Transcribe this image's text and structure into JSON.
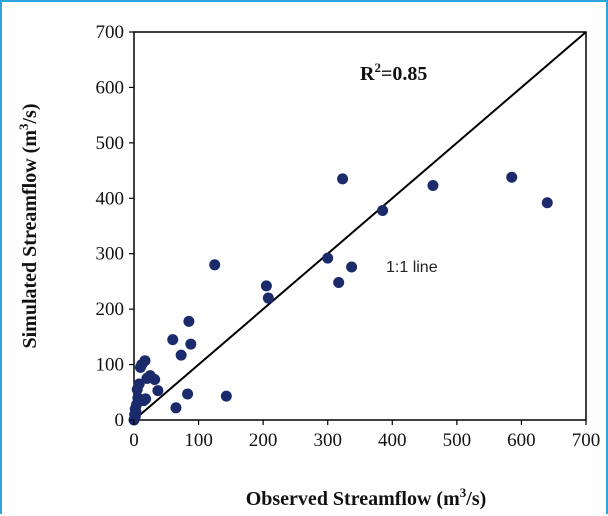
{
  "chart_data": {
    "type": "scatter",
    "title": "",
    "xlabel": {
      "main": "Observed Streamflow (m",
      "sup": "3",
      "tail": "/s)"
    },
    "ylabel": {
      "main": "Simulated Streamflow (m",
      "sup": "3",
      "tail": "/s)"
    },
    "xlim": [
      0,
      700
    ],
    "ylim": [
      0,
      700
    ],
    "x_ticks": [
      0,
      100,
      200,
      300,
      400,
      500,
      600,
      700
    ],
    "y_ticks": [
      0,
      100,
      200,
      300,
      400,
      500,
      600,
      700
    ],
    "stat_label": {
      "main": "R",
      "sup": "2",
      "tail": "=0.85"
    },
    "reference_line": {
      "label": "1:1 line",
      "from": [
        0,
        0
      ],
      "to": [
        700,
        700
      ]
    },
    "grid": false,
    "marker_color": "#1b2a6b",
    "line_color": "#000000",
    "points": [
      {
        "x": 0,
        "y": 0
      },
      {
        "x": 1,
        "y": 3
      },
      {
        "x": 2,
        "y": 6
      },
      {
        "x": 1,
        "y": 10
      },
      {
        "x": 3,
        "y": 15
      },
      {
        "x": 2,
        "y": 20
      },
      {
        "x": 4,
        "y": 28
      },
      {
        "x": 6,
        "y": 40
      },
      {
        "x": 5,
        "y": 55
      },
      {
        "x": 8,
        "y": 65
      },
      {
        "x": 10,
        "y": 95
      },
      {
        "x": 12,
        "y": 100
      },
      {
        "x": 17,
        "y": 107
      },
      {
        "x": 15,
        "y": 35
      },
      {
        "x": 18,
        "y": 38
      },
      {
        "x": 20,
        "y": 75
      },
      {
        "x": 25,
        "y": 80
      },
      {
        "x": 32,
        "y": 73
      },
      {
        "x": 37,
        "y": 53
      },
      {
        "x": 60,
        "y": 145
      },
      {
        "x": 65,
        "y": 22
      },
      {
        "x": 73,
        "y": 117
      },
      {
        "x": 83,
        "y": 47
      },
      {
        "x": 85,
        "y": 178
      },
      {
        "x": 88,
        "y": 137
      },
      {
        "x": 125,
        "y": 280
      },
      {
        "x": 143,
        "y": 43
      },
      {
        "x": 205,
        "y": 242
      },
      {
        "x": 208,
        "y": 220
      },
      {
        "x": 300,
        "y": 292
      },
      {
        "x": 317,
        "y": 248
      },
      {
        "x": 323,
        "y": 435
      },
      {
        "x": 337,
        "y": 276
      },
      {
        "x": 385,
        "y": 378
      },
      {
        "x": 463,
        "y": 423
      },
      {
        "x": 585,
        "y": 438
      },
      {
        "x": 640,
        "y": 392
      }
    ]
  }
}
